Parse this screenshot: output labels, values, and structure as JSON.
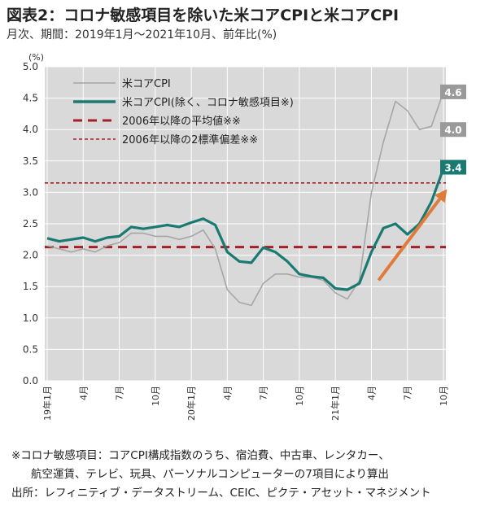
{
  "header": {
    "title": "図表2：コロナ敏感項目を除いた米コアCPIと米コアCPI",
    "subtitle": "月次、期間：2019年1月～2021年10月、前年比(%)"
  },
  "footnotes": {
    "line1": "※コロナ敏感項目：コアCPI構成指数のうち、宿泊費、中古車、レンタカー、",
    "line2": "航空運賃、テレビ、玩具、パーソナルコンピューターの7項目により算出",
    "line3": "出所：レフィニティブ・データストリーム、CEIC、ピクテ・アセット・マネジメント"
  },
  "chart_data": {
    "type": "line",
    "yunit": "(%)",
    "ylim": [
      0.0,
      5.0
    ],
    "yticks": [
      "5.0",
      "4.5",
      "4.0",
      "3.5",
      "3.0",
      "2.5",
      "2.0",
      "1.5",
      "1.0",
      "0.5",
      "0.0"
    ],
    "grid": true,
    "background": "#d9d9d9",
    "x": [
      "2019-01",
      "2019-02",
      "2019-03",
      "2019-04",
      "2019-05",
      "2019-06",
      "2019-07",
      "2019-08",
      "2019-09",
      "2019-10",
      "2019-11",
      "2019-12",
      "2020-01",
      "2020-02",
      "2020-03",
      "2020-04",
      "2020-05",
      "2020-06",
      "2020-07",
      "2020-08",
      "2020-09",
      "2020-10",
      "2020-11",
      "2020-12",
      "2021-01",
      "2021-02",
      "2021-03",
      "2021-04",
      "2021-05",
      "2021-06",
      "2021-07",
      "2021-08",
      "2021-09",
      "2021-10"
    ],
    "xticks": [
      {
        "index": 0,
        "label": "19年1月"
      },
      {
        "index": 3,
        "label": "4月"
      },
      {
        "index": 6,
        "label": "7月"
      },
      {
        "index": 9,
        "label": "10月"
      },
      {
        "index": 12,
        "label": "20年1月"
      },
      {
        "index": 15,
        "label": "4月"
      },
      {
        "index": 18,
        "label": "7月"
      },
      {
        "index": 21,
        "label": "10月"
      },
      {
        "index": 24,
        "label": "21年1月"
      },
      {
        "index": 27,
        "label": "4月"
      },
      {
        "index": 30,
        "label": "7月"
      },
      {
        "index": 33,
        "label": "10月"
      }
    ],
    "series": [
      {
        "name": "米コアCPI",
        "color": "#a6a6a6",
        "values": [
          2.15,
          2.1,
          2.05,
          2.1,
          2.05,
          2.15,
          2.2,
          2.35,
          2.35,
          2.3,
          2.3,
          2.25,
          2.3,
          2.4,
          2.1,
          1.45,
          1.25,
          1.2,
          1.55,
          1.7,
          1.7,
          1.65,
          1.65,
          1.6,
          1.4,
          1.3,
          1.6,
          3.0,
          3.8,
          4.45,
          4.3,
          4.0,
          4.05,
          4.6
        ]
      },
      {
        "name": "米コアCPI(除く、コロナ敏感項目※)",
        "color": "#1a7a72",
        "values": [
          2.27,
          2.22,
          2.25,
          2.28,
          2.22,
          2.28,
          2.3,
          2.45,
          2.42,
          2.45,
          2.48,
          2.45,
          2.52,
          2.58,
          2.48,
          2.05,
          1.9,
          1.88,
          2.12,
          2.05,
          1.9,
          1.7,
          1.66,
          1.64,
          1.47,
          1.45,
          1.55,
          2.05,
          2.43,
          2.5,
          2.33,
          2.5,
          2.85,
          3.38
        ]
      }
    ],
    "reference_lines": [
      {
        "name": "2006年以降の平均値※※",
        "value": 2.13,
        "color": "#a32027",
        "style": "long-dash"
      },
      {
        "name": "2006年以降の2標準偏差※※",
        "value": 3.15,
        "color": "#a32027",
        "style": "short-dash"
      }
    ],
    "end_labels": [
      {
        "text": "4.6",
        "series": 0
      },
      {
        "text": "4.0",
        "series": 0
      },
      {
        "text": "3.4",
        "series": 1
      }
    ],
    "arrow": {
      "from": {
        "index": 27.6,
        "value": 1.6
      },
      "to": {
        "index": 33.3,
        "value": 3.05
      },
      "color": "#e07b39"
    },
    "legend": {
      "placement": "top-left"
    }
  }
}
